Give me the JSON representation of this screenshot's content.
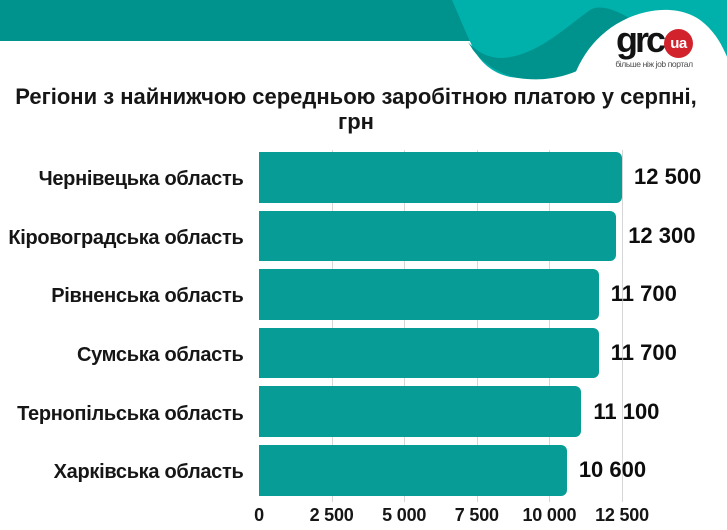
{
  "header": {
    "logo": {
      "text": "grc",
      "tld": "ua",
      "tagline": "більше ніж job портал"
    },
    "colors": {
      "band_dark_teal": "#00938E",
      "wave_light_teal": "#00B1AB",
      "logo_red": "#D2232C"
    }
  },
  "title": {
    "line1": "Регіони з найнижчою середньою заробітною платою у серпні,",
    "line2": "грн"
  },
  "chart_data": {
    "type": "bar",
    "orientation": "horizontal",
    "title": "Регіони з найнижчою середньою заробітною платою у серпні, грн",
    "categories": [
      "Чернівецька область",
      "Кіровоградська область",
      "Рівненська область",
      "Сумська область",
      "Тернопільська область",
      "Харківська область"
    ],
    "values": [
      12500,
      12300,
      11700,
      11700,
      11100,
      10600
    ],
    "value_labels": [
      "12 500",
      "12 300",
      "11 700",
      "11 700",
      "11 100",
      "10 600"
    ],
    "xlabel": "",
    "ylabel": "",
    "xlim": [
      0,
      12500
    ],
    "xticks": [
      0,
      2500,
      5000,
      7500,
      10000,
      12500
    ],
    "xtick_labels": [
      "0",
      "2 500",
      "5 000",
      "7 500",
      "10 000",
      "12 500"
    ],
    "grid": "vertical, light gray, behind bars",
    "legend": "none",
    "bar_color": "#079C96"
  }
}
